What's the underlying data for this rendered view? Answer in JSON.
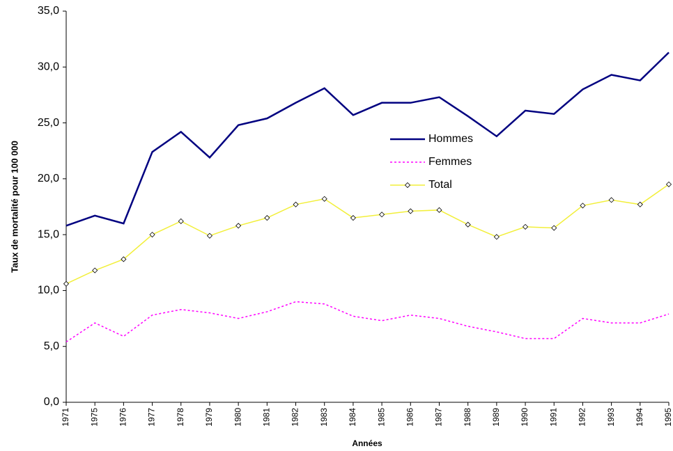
{
  "chart_data": {
    "type": "line",
    "y_label": "Taux de mortalité pour 100 000",
    "x_label": "Années",
    "categories": [
      "1971",
      "1975",
      "1976",
      "1977",
      "1978",
      "1979",
      "1980",
      "1981",
      "1982",
      "1983",
      "1984",
      "1985",
      "1986",
      "1987",
      "1988",
      "1989",
      "1990",
      "1991",
      "1992",
      "1993",
      "1994",
      "1995"
    ],
    "series": [
      {
        "name": "Hommes",
        "color": "#000080",
        "dashed": false,
        "marker": "none",
        "values": [
          15.8,
          16.7,
          16.0,
          22.4,
          24.2,
          21.9,
          24.8,
          25.4,
          26.8,
          28.1,
          25.7,
          26.8,
          26.8,
          27.3,
          25.6,
          23.8,
          26.1,
          25.8,
          28.0,
          29.3,
          28.8,
          31.3
        ]
      },
      {
        "name": "Femmes",
        "color": "#ff00ff",
        "dashed": true,
        "marker": "none",
        "values": [
          5.4,
          7.1,
          5.9,
          7.8,
          8.3,
          8.0,
          7.5,
          8.1,
          9.0,
          8.8,
          7.7,
          7.3,
          7.8,
          7.5,
          6.8,
          6.3,
          5.7,
          5.7,
          7.5,
          7.1,
          7.1,
          7.9
        ]
      },
      {
        "name": "Total",
        "color": "#f2ef3a",
        "dashed": false,
        "marker": "diamond",
        "values": [
          10.6,
          11.8,
          12.8,
          15.0,
          16.2,
          14.9,
          15.8,
          16.5,
          17.7,
          18.2,
          16.5,
          16.8,
          17.1,
          17.2,
          15.9,
          14.8,
          15.7,
          15.6,
          17.6,
          18.1,
          17.7,
          19.5
        ]
      }
    ],
    "ylim": [
      0,
      35
    ],
    "yticks": [
      {
        "value": 0,
        "label": "0,0"
      },
      {
        "value": 5,
        "label": "5,0"
      },
      {
        "value": 10,
        "label": "10,0"
      },
      {
        "value": 15,
        "label": "15,0"
      },
      {
        "value": 20,
        "label": "20,0"
      },
      {
        "value": 25,
        "label": "25,0"
      },
      {
        "value": 30,
        "label": "30,0"
      },
      {
        "value": 35,
        "label": "35,0"
      }
    ],
    "grid": false,
    "legend": "center"
  }
}
